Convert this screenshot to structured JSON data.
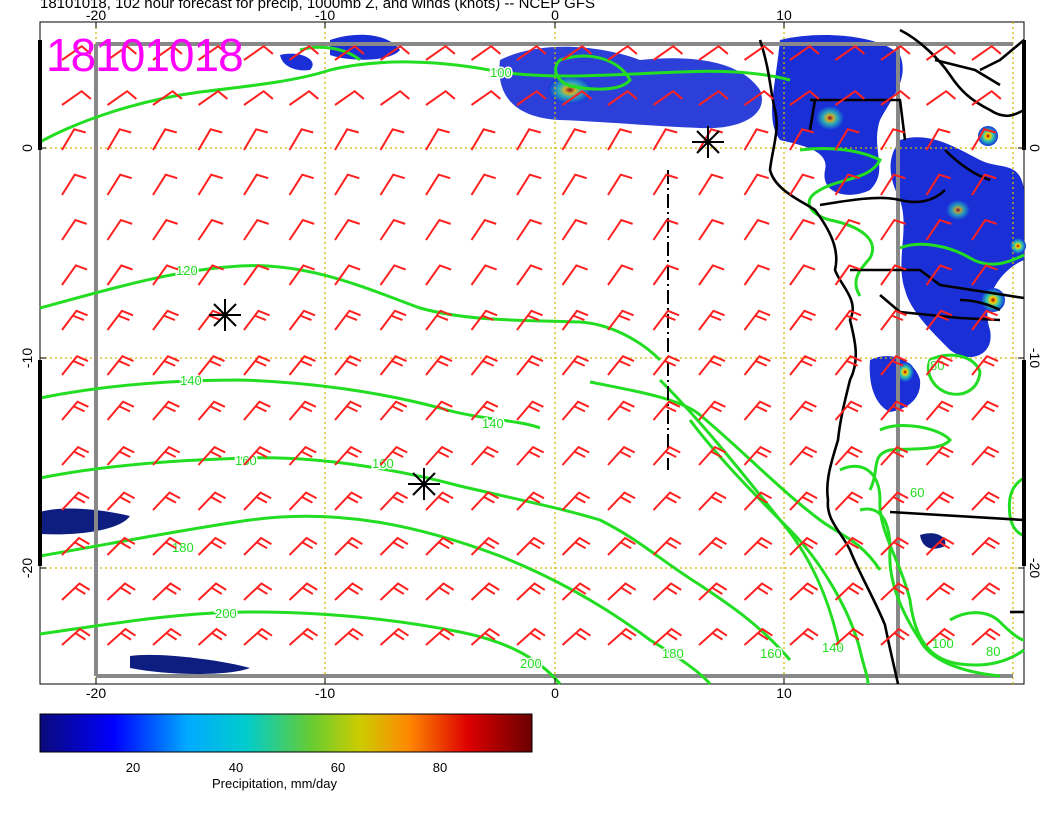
{
  "header": {
    "title": "18101018, 102 hour forecast for precip, 1000mb Z, and winds (knots) -- NCEP GFS",
    "stamp": "18101018"
  },
  "map": {
    "projection": "lat-lon",
    "lon_labels": [
      "-20",
      "-10",
      "0",
      "10"
    ],
    "lat_labels": [
      "0",
      "-10",
      "-20"
    ],
    "grid": "dotted yellow",
    "colors": {
      "contour": "#22dd22",
      "wind_barb": "#ff2020",
      "coast": "#000000",
      "grid": "#d4b800",
      "frame": "#888888"
    },
    "height_contours": [
      {
        "label": "100"
      },
      {
        "label": "120"
      },
      {
        "label": "140"
      },
      {
        "label": "140"
      },
      {
        "label": "160"
      },
      {
        "label": "160"
      },
      {
        "label": "180"
      },
      {
        "label": "200"
      },
      {
        "label": "200"
      },
      {
        "label": "180"
      },
      {
        "label": "160"
      },
      {
        "label": "140"
      },
      {
        "label": "80"
      },
      {
        "label": "60"
      },
      {
        "label": "100"
      },
      {
        "label": "80"
      }
    ],
    "storm_markers": 3
  },
  "colorbar": {
    "label": "Precipitation, mm/day",
    "ticks": [
      "20",
      "40",
      "60",
      "80"
    ],
    "colors": [
      "#0a0a7a",
      "#0000ff",
      "#00aaff",
      "#00cccc",
      "#66cc33",
      "#cccc00",
      "#ff8800",
      "#dd0000",
      "#7a0000"
    ]
  }
}
